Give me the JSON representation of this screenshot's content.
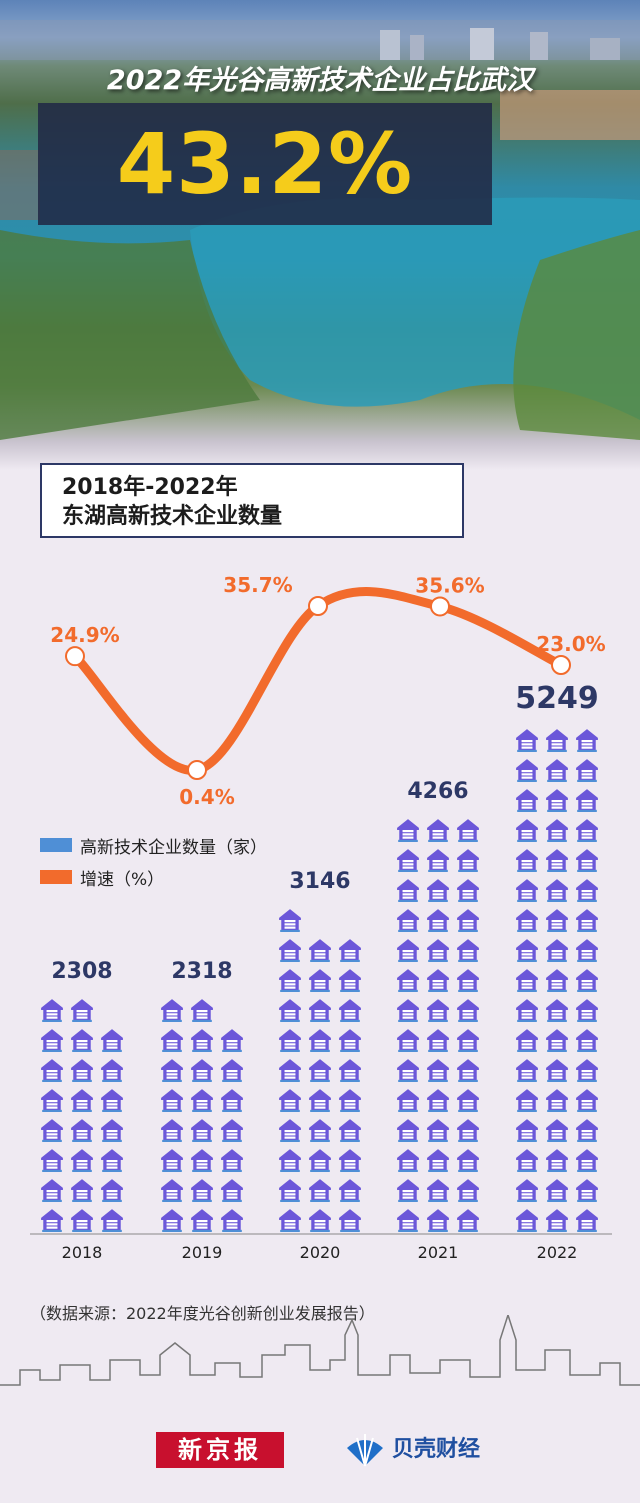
{
  "hero": {
    "title": "2022年光谷高新技术企业占比武汉",
    "highlight": "43.2%"
  },
  "chart_box": {
    "line1": "2018年-2022年",
    "line2": "东湖高新技术企业数量"
  },
  "legend": {
    "count_label": "高新技术企业数量（家）",
    "rate_label": "增速（%）"
  },
  "colors": {
    "count": "#6b57d9",
    "rate": "#f26b2c",
    "value_text": "#2d3866",
    "hero_number": "#f5cc1b"
  },
  "chart_data": {
    "type": "bar",
    "categories": [
      "2018",
      "2019",
      "2020",
      "2021",
      "2022"
    ],
    "series": [
      {
        "name": "高新技术企业数量（家）",
        "type": "pictogram-bar",
        "values": [
          2308,
          2318,
          3146,
          4266,
          5249
        ],
        "labels": [
          "2308",
          "2318",
          "3146",
          "4266",
          "5249"
        ]
      },
      {
        "name": "增速（%）",
        "type": "line",
        "values": [
          24.9,
          0.4,
          35.7,
          35.6,
          23.0
        ],
        "labels": [
          "24.9%",
          "0.4%",
          "35.7%",
          "35.6%",
          "23.0%"
        ]
      }
    ],
    "icon_units": [
      23,
      23,
      31,
      42,
      51
    ],
    "grid": false,
    "legend_position": "left"
  },
  "source": "（数据来源：2022年度光谷创新创业发展报告）",
  "brands": {
    "xinjingbao": "新京报",
    "beike": "贝壳财经"
  }
}
